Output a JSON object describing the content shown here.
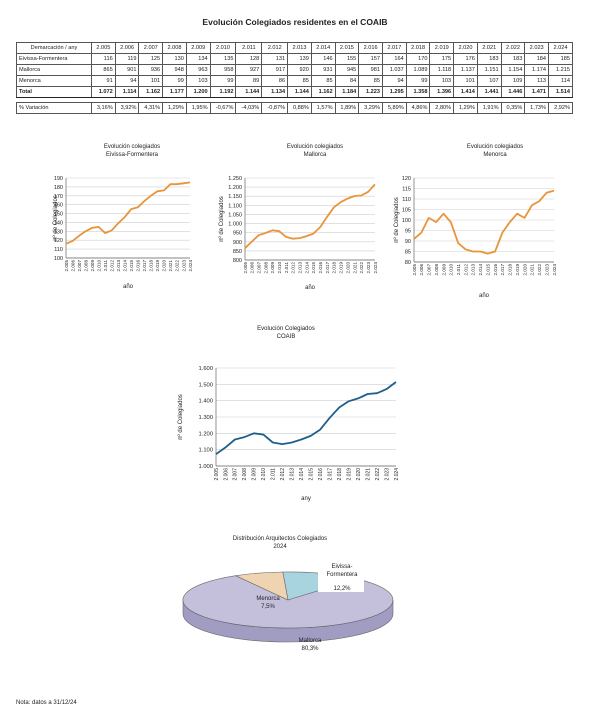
{
  "title": "Evolución Colegiados residentes en el COAIB",
  "table": {
    "header_label": "Demarcación / any",
    "years": [
      "2.005",
      "2.006",
      "2.007",
      "2.008",
      "2.009",
      "2.010",
      "2.011",
      "2.012",
      "2.013",
      "2.014",
      "2.015",
      "2.016",
      "2.017",
      "2.018",
      "2.019",
      "2.020",
      "2.021",
      "2.022",
      "2.023",
      "2.024"
    ],
    "rows": [
      {
        "label": "Eivissa-Formentera",
        "values": [
          "116",
          "119",
          "125",
          "130",
          "134",
          "135",
          "128",
          "131",
          "139",
          "146",
          "155",
          "157",
          "164",
          "170",
          "175",
          "176",
          "183",
          "183",
          "184",
          "185"
        ]
      },
      {
        "label": "Mallorca",
        "values": [
          "865",
          "901",
          "936",
          "948",
          "963",
          "958",
          "927",
          "917",
          "920",
          "931",
          "945",
          "981",
          "1.037",
          "1.089",
          "1.118",
          "1.137",
          "1.151",
          "1.154",
          "1.174",
          "1.215"
        ]
      },
      {
        "label": "Menorca",
        "values": [
          "91",
          "94",
          "101",
          "99",
          "103",
          "99",
          "89",
          "86",
          "85",
          "85",
          "84",
          "85",
          "94",
          "99",
          "103",
          "101",
          "107",
          "109",
          "113",
          "114"
        ]
      }
    ],
    "total": {
      "label": "Total",
      "values": [
        "1.072",
        "1.114",
        "1.162",
        "1.177",
        "1.200",
        "1.192",
        "1.144",
        "1.134",
        "1.144",
        "1.162",
        "1.184",
        "1.223",
        "1.295",
        "1.358",
        "1.396",
        "1.414",
        "1.441",
        "1.446",
        "1.471",
        "1.514"
      ]
    },
    "variation": {
      "label": "% Variación",
      "values": [
        "3,16%",
        "3,92%",
        "4,31%",
        "1,29%",
        "1,95%",
        "-0,67%",
        "-4,03%",
        "-0,87%",
        "0,88%",
        "1,57%",
        "1,89%",
        "3,29%",
        "5,89%",
        "4,86%",
        "2,80%",
        "1,29%",
        "1,91%",
        "0,35%",
        "1,73%",
        "2,92%"
      ]
    }
  },
  "chart_data": [
    {
      "type": "line",
      "title": "Evolución colegiados",
      "subtitle": "Eivissa-Formentera",
      "xlabel": "año",
      "ylabel": "nº de Colegiados",
      "color": "#e8943a",
      "ylim": [
        100,
        190
      ],
      "yticks": [
        "100",
        "110",
        "120",
        "130",
        "140",
        "150",
        "160",
        "170",
        "180",
        "190"
      ],
      "x": [
        "2.005",
        "2.006",
        "2.007",
        "2.008",
        "2.009",
        "2.010",
        "2.011",
        "2.012",
        "2.013",
        "2.014",
        "2.015",
        "2.016",
        "2.017",
        "2.018",
        "2.019",
        "2.020",
        "2.021",
        "2.022",
        "2.023",
        "2.024"
      ],
      "values": [
        116,
        119,
        125,
        130,
        134,
        135,
        128,
        131,
        139,
        146,
        155,
        157,
        164,
        170,
        175,
        176,
        183,
        183,
        184,
        185
      ]
    },
    {
      "type": "line",
      "title": "Evolución colegiados",
      "subtitle": "Mallorca",
      "xlabel": "año",
      "ylabel": "nº de Colegiados",
      "color": "#e8943a",
      "ylim": [
        800,
        1250
      ],
      "yticks": [
        "800",
        "850",
        "900",
        "950",
        "1.000",
        "1.050",
        "1.100",
        "1.150",
        "1.200",
        "1.250"
      ],
      "x": [
        "2.005",
        "2.006",
        "2.007",
        "2.008",
        "2.009",
        "2.010",
        "2.011",
        "2.012",
        "2.013",
        "2.014",
        "2.015",
        "2.016",
        "2.017",
        "2.018",
        "2.019",
        "2.020",
        "2.021",
        "2.022",
        "2.023",
        "2.024"
      ],
      "values": [
        865,
        901,
        936,
        948,
        963,
        958,
        927,
        917,
        920,
        931,
        945,
        981,
        1037,
        1089,
        1118,
        1137,
        1151,
        1154,
        1174,
        1215
      ]
    },
    {
      "type": "line",
      "title": "Evolución colegiados",
      "subtitle": "Menorca",
      "xlabel": "año",
      "ylabel": "nº de Colegiados",
      "color": "#e8943a",
      "ylim": [
        80,
        120
      ],
      "yticks": [
        "80",
        "85",
        "90",
        "95",
        "100",
        "105",
        "110",
        "115",
        "120"
      ],
      "x": [
        "2.005",
        "2.006",
        "2.007",
        "2.008",
        "2.009",
        "2.010",
        "2.011",
        "2.012",
        "2.013",
        "2.014",
        "2.015",
        "2.016",
        "2.017",
        "2.018",
        "2.019",
        "2.020",
        "2.021",
        "2.022",
        "2.023",
        "2.024"
      ],
      "values": [
        91,
        94,
        101,
        99,
        103,
        99,
        89,
        86,
        85,
        85,
        84,
        85,
        94,
        99,
        103,
        101,
        107,
        109,
        113,
        114
      ]
    },
    {
      "type": "line",
      "title": "Evolución Colegiados",
      "subtitle": "COAIB",
      "xlabel": "any",
      "ylabel": "nº de Colegiados",
      "color": "#1f5f8b",
      "ylim": [
        1000,
        1600
      ],
      "yticks": [
        "1.000",
        "1.100",
        "1.200",
        "1.300",
        "1.400",
        "1.500",
        "1.600"
      ],
      "x": [
        "2.005",
        "2.006",
        "2.007",
        "2.008",
        "2.009",
        "2.010",
        "2.011",
        "2.012",
        "2.013",
        "2.014",
        "2.015",
        "2.016",
        "2.017",
        "2.018",
        "2.019",
        "2.020",
        "2.021",
        "2.022",
        "2.023",
        "2.024"
      ],
      "values": [
        1072,
        1114,
        1162,
        1177,
        1200,
        1192,
        1144,
        1134,
        1144,
        1162,
        1184,
        1223,
        1295,
        1358,
        1396,
        1414,
        1441,
        1446,
        1471,
        1514
      ]
    },
    {
      "type": "pie",
      "title": "Distribución Arquitectos Colegiados",
      "subtitle": "2024",
      "slices": [
        {
          "name": "Eivissa-Formentera",
          "value": 12.2,
          "label": "12,2%",
          "color": "#a8d4df"
        },
        {
          "name": "Mallorca",
          "value": 80.3,
          "label": "80,3%",
          "color": "#c4c0dc"
        },
        {
          "name": "Menorca",
          "value": 7.5,
          "label": "7,5%",
          "color": "#f0d3b0"
        }
      ]
    }
  ],
  "note": "Nota: datos a 31/12/24"
}
